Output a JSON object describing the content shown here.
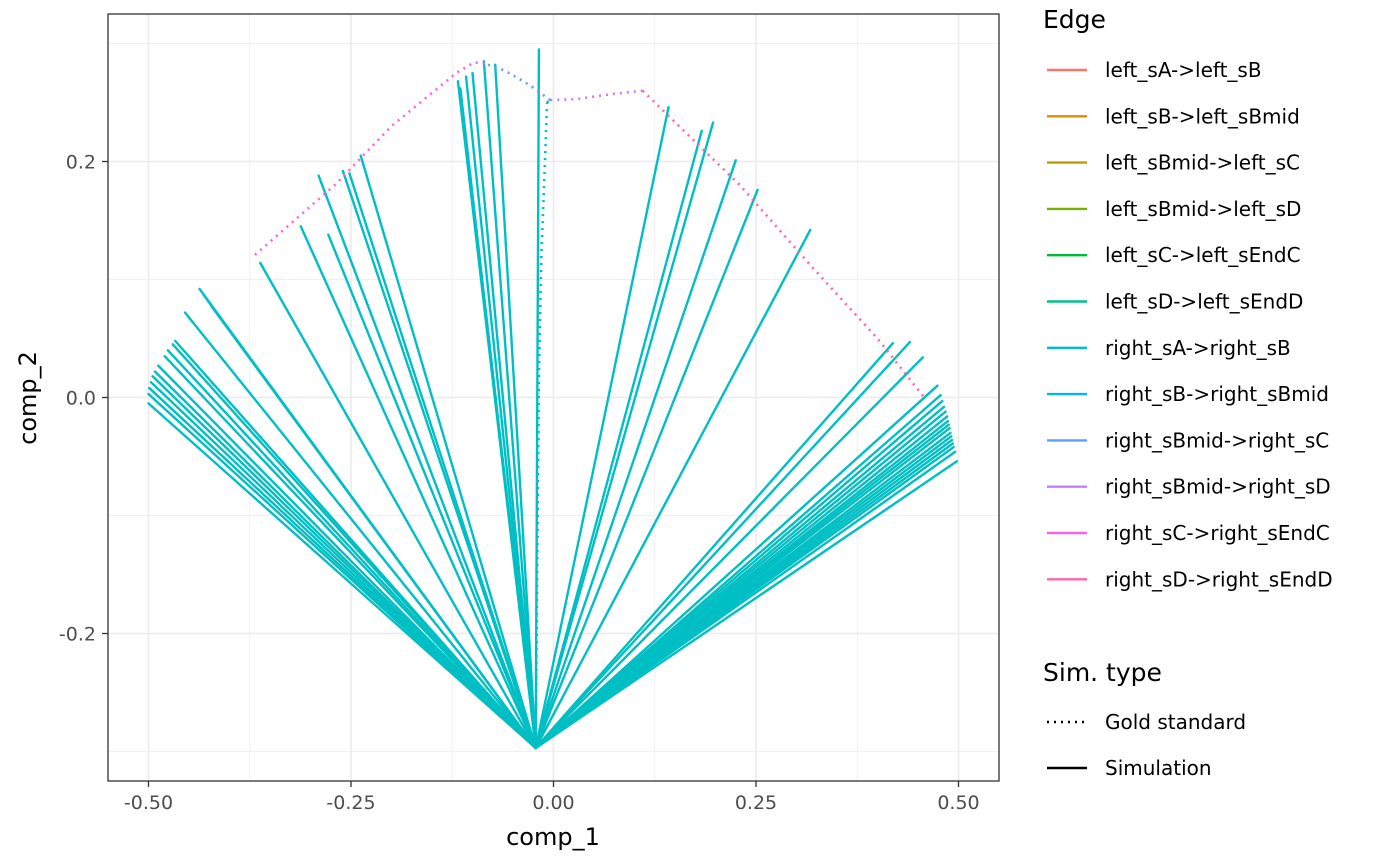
{
  "chart_data": {
    "type": "line",
    "xlabel": "comp_1",
    "ylabel": "comp_2",
    "xlim": [
      -0.55,
      0.55
    ],
    "ylim": [
      -0.325,
      0.325
    ],
    "x_ticks": [
      -0.5,
      -0.25,
      0.0,
      0.25,
      0.5
    ],
    "x_tick_labels": [
      "-0.50",
      "-0.25",
      "0.00",
      "0.25",
      "0.50"
    ],
    "y_ticks": [
      -0.2,
      0.0,
      0.2
    ],
    "y_tick_labels": [
      "-0.2",
      "0.0",
      "0.2"
    ],
    "grid": true,
    "legend_position": "right",
    "edge_legend": {
      "title": "Edge",
      "entries": [
        {
          "label": "left_sA->left_sB",
          "color": "#F8766D"
        },
        {
          "label": "left_sB->left_sBmid",
          "color": "#DE8C00"
        },
        {
          "label": "left_sBmid->left_sC",
          "color": "#B79F00"
        },
        {
          "label": "left_sBmid->left_sD",
          "color": "#7CAE00"
        },
        {
          "label": "left_sC->left_sEndC",
          "color": "#00BA38"
        },
        {
          "label": "left_sD->left_sEndD",
          "color": "#00C08B"
        },
        {
          "label": "right_sA->right_sB",
          "color": "#00BFC4"
        },
        {
          "label": "right_sB->right_sBmid",
          "color": "#00B4F0"
        },
        {
          "label": "right_sBmid->right_sC",
          "color": "#619CFF"
        },
        {
          "label": "right_sBmid->right_sD",
          "color": "#C77CFF"
        },
        {
          "label": "right_sC->right_sEndC",
          "color": "#F564E3"
        },
        {
          "label": "right_sD->right_sEndD",
          "color": "#FF64B0"
        }
      ]
    },
    "type_legend": {
      "title": "Sim. type",
      "entries": [
        {
          "label": "Gold standard",
          "linetype": "dotted"
        },
        {
          "label": "Simulation",
          "linetype": "solid"
        }
      ]
    },
    "simulation_series": {
      "name": "right_sA->right_sB",
      "color": "#00BFC4",
      "origin": [
        -0.022,
        -0.297
      ],
      "endpoints": [
        [
          -0.5,
          -0.005
        ],
        [
          -0.5,
          0.003
        ],
        [
          -0.499,
          0.008
        ],
        [
          -0.497,
          0.013
        ],
        [
          -0.495,
          0.018
        ],
        [
          -0.492,
          0.022
        ],
        [
          -0.488,
          0.027
        ],
        [
          -0.48,
          0.035
        ],
        [
          -0.476,
          0.04
        ],
        [
          -0.47,
          0.045
        ],
        [
          -0.467,
          0.048
        ],
        [
          -0.455,
          0.072
        ],
        [
          -0.437,
          0.092
        ],
        [
          -0.432,
          0.087
        ],
        [
          -0.423,
          0.078
        ],
        [
          -0.362,
          0.114
        ],
        [
          -0.312,
          0.145
        ],
        [
          -0.29,
          0.188
        ],
        [
          -0.278,
          0.138
        ],
        [
          -0.26,
          0.192
        ],
        [
          -0.252,
          0.19
        ],
        [
          -0.238,
          0.205
        ],
        [
          -0.118,
          0.268
        ],
        [
          -0.115,
          0.262
        ],
        [
          -0.108,
          0.272
        ],
        [
          -0.1,
          0.275
        ],
        [
          -0.086,
          0.285
        ],
        [
          -0.072,
          0.282
        ],
        [
          -0.018,
          0.295
        ],
        [
          0.142,
          0.246
        ],
        [
          0.183,
          0.226
        ],
        [
          0.197,
          0.233
        ],
        [
          0.225,
          0.201
        ],
        [
          0.252,
          0.176
        ],
        [
          0.317,
          0.142
        ],
        [
          0.419,
          0.046
        ],
        [
          0.44,
          0.047
        ],
        [
          0.456,
          0.034
        ],
        [
          0.474,
          0.01
        ],
        [
          0.478,
          0.002
        ],
        [
          0.48,
          -0.003
        ],
        [
          0.482,
          -0.008
        ],
        [
          0.484,
          -0.012
        ],
        [
          0.486,
          -0.016
        ],
        [
          0.487,
          -0.02
        ],
        [
          0.488,
          -0.023
        ],
        [
          0.489,
          -0.026
        ],
        [
          0.49,
          -0.03
        ],
        [
          0.491,
          -0.033
        ],
        [
          0.492,
          -0.036
        ],
        [
          0.493,
          -0.039
        ],
        [
          0.494,
          -0.042
        ],
        [
          0.496,
          -0.046
        ],
        [
          0.498,
          -0.054
        ]
      ]
    },
    "gold_standard_series": [
      {
        "name": "right_sA->right_sB",
        "color": "#00BFC4",
        "x": [
          -0.022,
          -0.018,
          -0.015,
          -0.01,
          -0.008
        ],
        "y": [
          -0.297,
          0.02,
          0.12,
          0.21,
          0.25
        ]
      },
      {
        "name": "right_sB->right_sBmid",
        "color": "#00B4F0",
        "x": [
          -0.008,
          -0.004
        ],
        "y": [
          0.25,
          0.252
        ]
      },
      {
        "name": "right_sBmid->right_sC",
        "color": "#619CFF",
        "x": [
          -0.004,
          -0.03,
          -0.06,
          -0.085
        ],
        "y": [
          0.252,
          0.265,
          0.277,
          0.283
        ]
      },
      {
        "name": "right_sBmid->right_sD",
        "color": "#C77CFF",
        "x": [
          -0.004,
          0.03,
          0.07,
          0.11
        ],
        "y": [
          0.252,
          0.253,
          0.257,
          0.26
        ]
      },
      {
        "name": "right_sC->right_sEndC",
        "color": "#F564E3",
        "x": [
          -0.085,
          -0.098,
          -0.12,
          -0.2,
          -0.27,
          -0.37
        ],
        "y": [
          0.283,
          0.284,
          0.275,
          0.23,
          0.18,
          0.12
        ]
      },
      {
        "name": "right_sD->right_sEndD",
        "color": "#FF64B0",
        "x": [
          0.11,
          0.14,
          0.23,
          0.32,
          0.4,
          0.46
        ],
        "y": [
          0.26,
          0.24,
          0.18,
          0.11,
          0.05,
          -0.002
        ]
      }
    ]
  }
}
